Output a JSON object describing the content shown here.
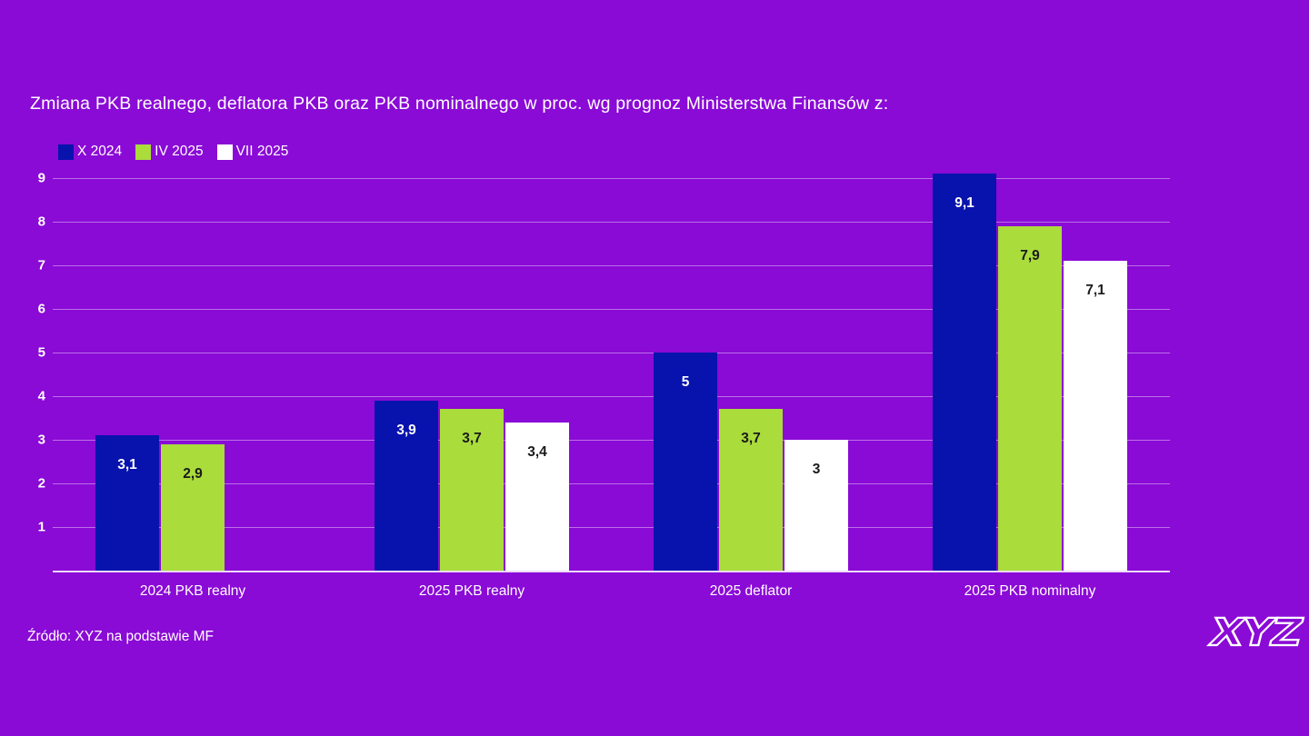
{
  "page": {
    "title": "Zmiana PKB realnego, deflatora PKB oraz PKB nominalnego w proc. wg prognoz Ministerstwa Finansów z:",
    "source": "Źródło: XYZ na podstawie MF",
    "logo_text": "XYZ"
  },
  "colors": {
    "background": "#8A0AD6",
    "series_blue": "#0813AD",
    "series_green": "#AADC3C",
    "series_white": "#FFFFFF",
    "gridline": "rgba(255,255,255,0.42)",
    "axis_line": "rgba(255,255,255,0.85)",
    "light_text": "#FFFFFF",
    "dark_text": "#1A1A1A"
  },
  "chart_data": {
    "type": "bar",
    "title": "Zmiana PKB realnego, deflatora PKB oraz PKB nominalnego w proc. wg prognoz Ministerstwa Finansów z:",
    "xlabel": "",
    "ylabel": "",
    "ylim": [
      0,
      9.1
    ],
    "y_ticks": [
      1,
      2,
      3,
      4,
      5,
      6,
      7,
      8,
      9
    ],
    "grid": true,
    "legend_position": "top-left",
    "categories": [
      "2024 PKB realny",
      "2025 PKB realny",
      "2025 deflator",
      "2025 PKB nominalny"
    ],
    "series": [
      {
        "name": "X 2024",
        "color": "#0813AD",
        "label_color": "#FFFFFF",
        "values": [
          3.1,
          3.9,
          5,
          9.1
        ],
        "labels": [
          "3,1",
          "3,9",
          "5",
          "9,1"
        ]
      },
      {
        "name": "IV 2025",
        "color": "#AADC3C",
        "label_color": "#1A1A1A",
        "values": [
          2.9,
          3.7,
          3.7,
          7.9
        ],
        "labels": [
          "2,9",
          "3,7",
          "3,7",
          "7,9"
        ]
      },
      {
        "name": "VII 2025",
        "color": "#FFFFFF",
        "label_color": "#1A1A1A",
        "values": [
          null,
          3.4,
          3,
          7.1
        ],
        "labels": [
          "",
          "3,4",
          "3",
          "7,1"
        ]
      }
    ]
  }
}
